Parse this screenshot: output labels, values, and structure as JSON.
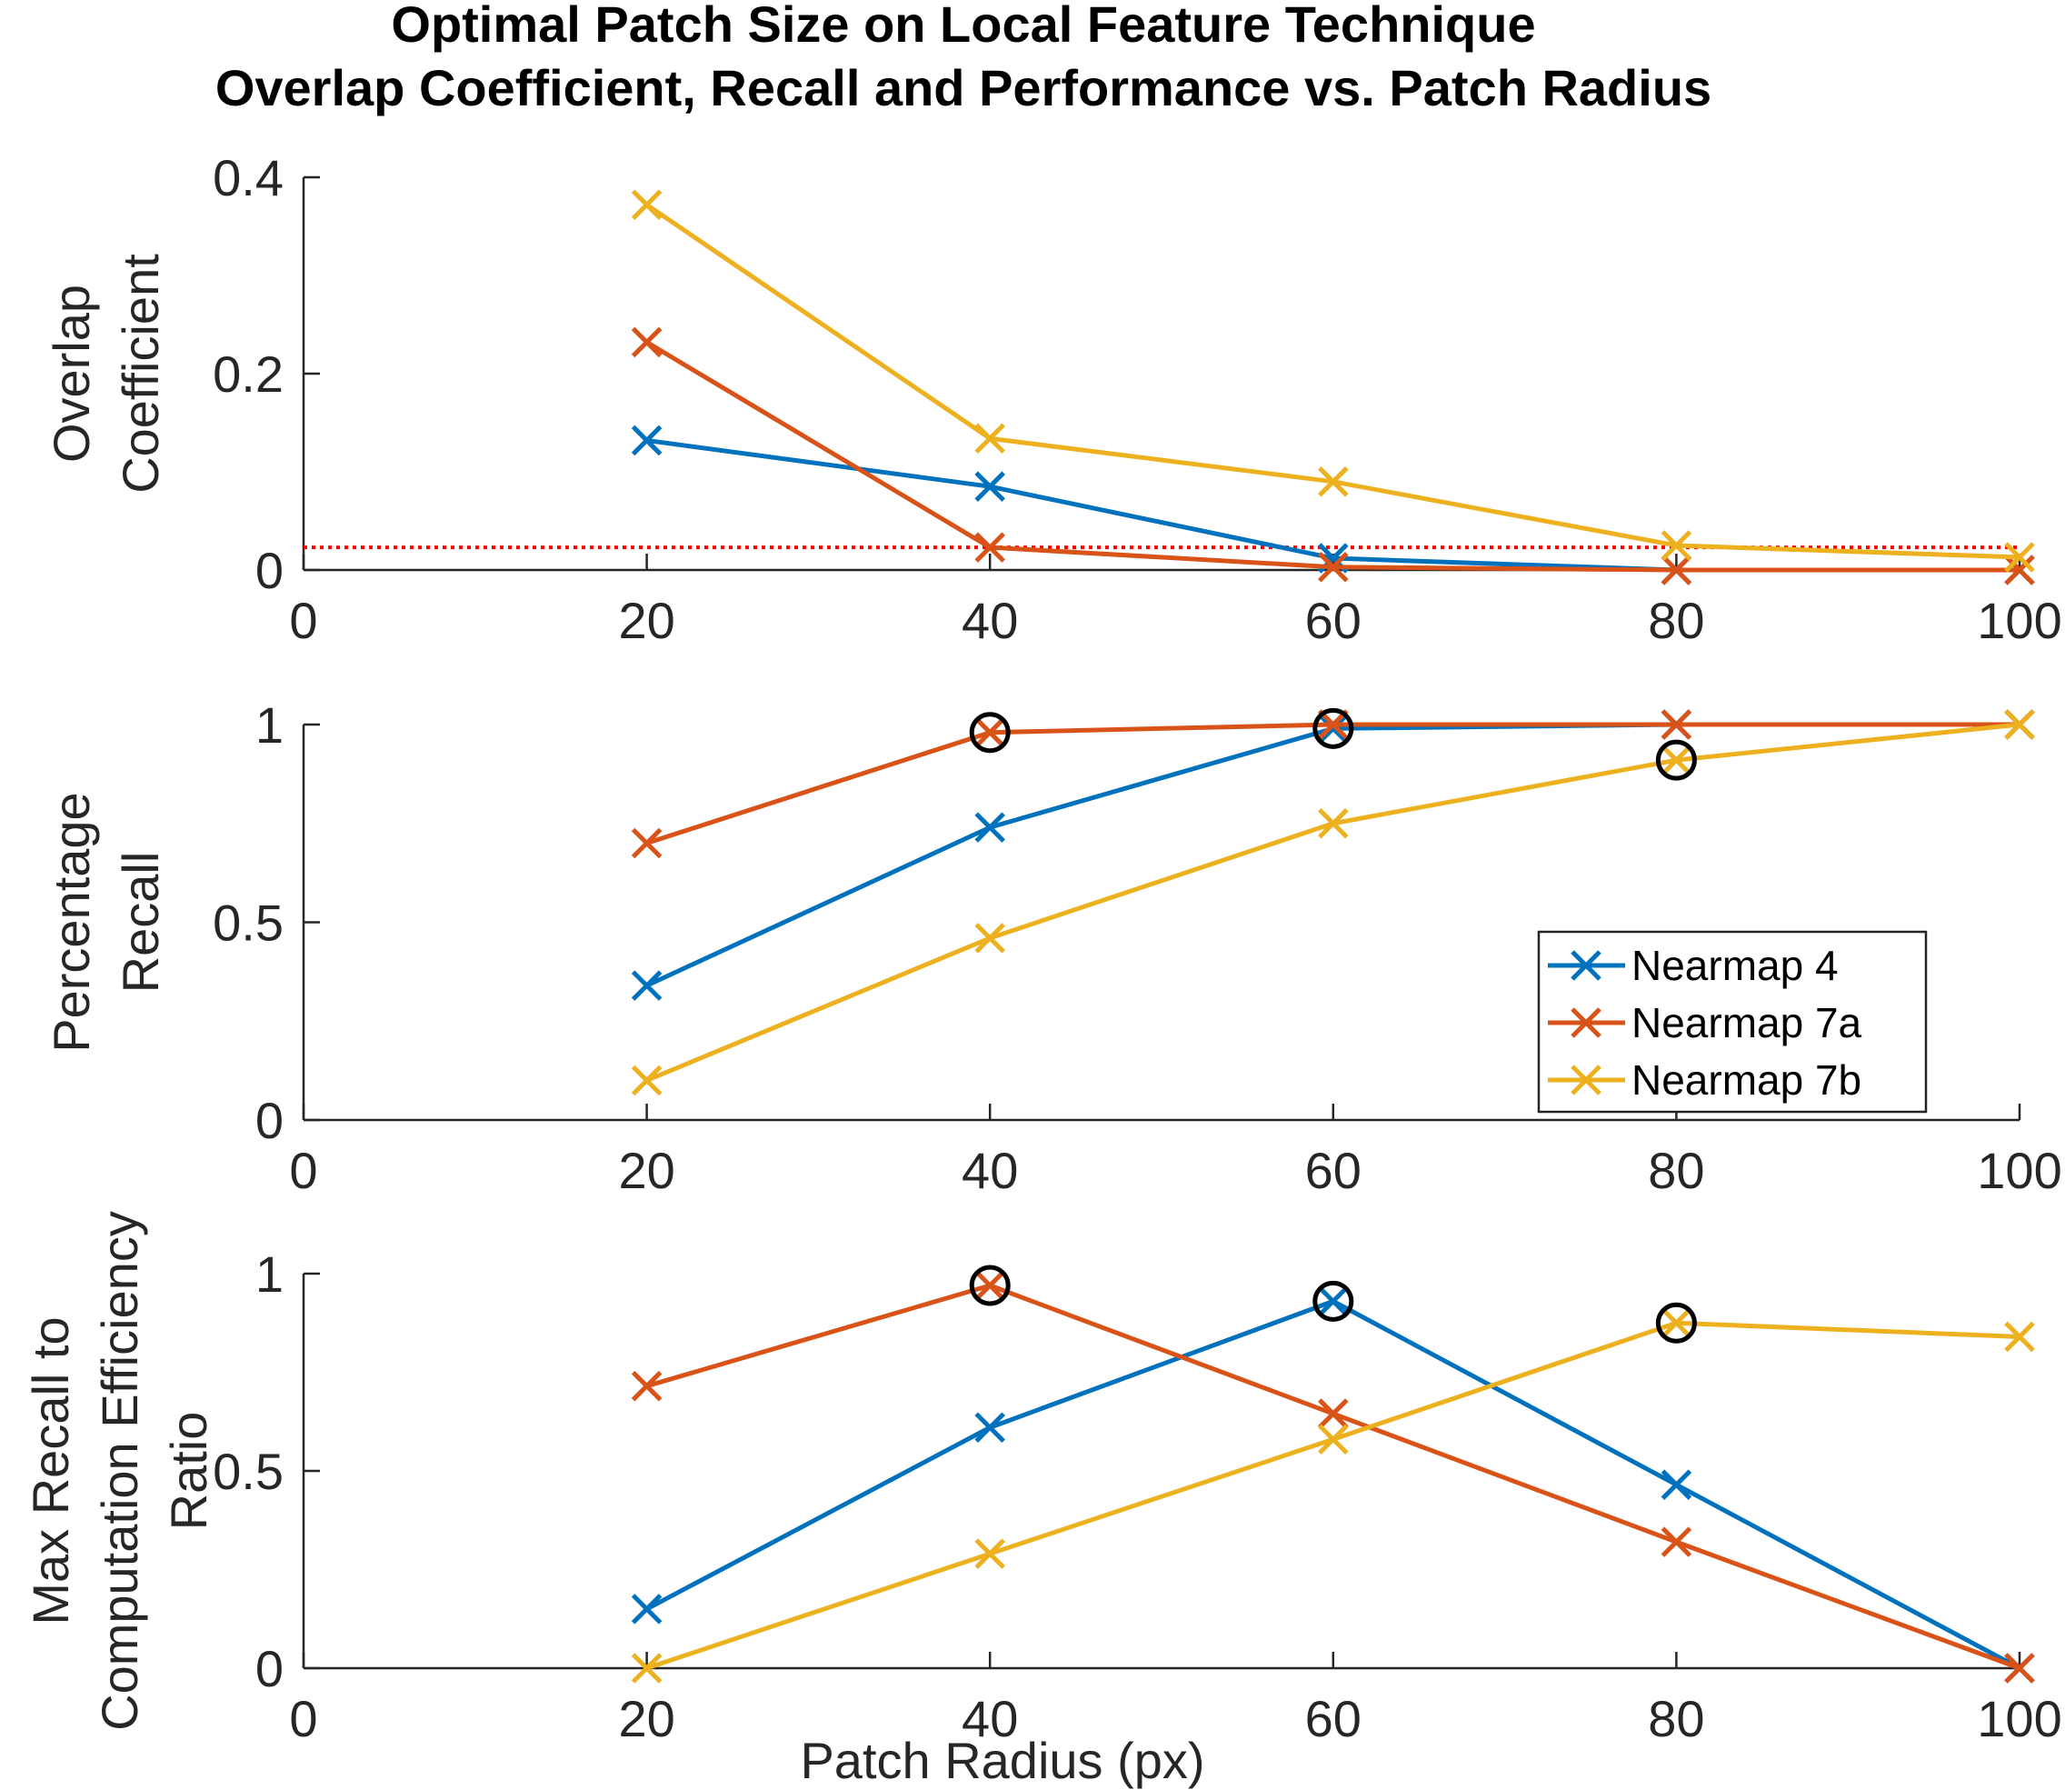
{
  "chart_data": {
    "type": "line",
    "title": [
      "Optimal Patch Size on Local Feature Technique",
      "Overlap Coefficient, Recall and Performance vs. Patch Radius"
    ],
    "xlabel": "Patch Radius (px)",
    "x": [
      20,
      40,
      60,
      80,
      100
    ],
    "xlim": [
      0,
      100
    ],
    "xticks": [
      0,
      20,
      40,
      60,
      80,
      100
    ],
    "colors": {
      "Nearmap 4": "#0072BD",
      "Nearmap 7a": "#D95319",
      "Nearmap 7b": "#EDB120",
      "threshold": "#FF0000",
      "highlight": "#000000"
    },
    "legend": {
      "entries": [
        "Nearmap 4",
        "Nearmap 7a",
        "Nearmap 7b"
      ],
      "location": "lower-right of middle panel"
    },
    "panels": [
      {
        "ylabel": [
          "Overlap",
          "Coefficient"
        ],
        "ylim": [
          0,
          0.4
        ],
        "yticks": [
          0,
          0.2,
          0.4
        ],
        "ytick_labels": [
          "0",
          "0.2",
          "0.4"
        ],
        "series": [
          {
            "name": "Nearmap 4",
            "values": [
              0.132,
              0.085,
              0.012,
              0.0,
              0.0
            ]
          },
          {
            "name": "Nearmap 7a",
            "values": [
              0.232,
              0.023,
              0.003,
              0.0,
              0.0
            ]
          },
          {
            "name": "Nearmap 7b",
            "values": [
              0.372,
              0.134,
              0.09,
              0.025,
              0.013
            ]
          }
        ],
        "reference_line": {
          "y": 0.023,
          "style": "dotted"
        }
      },
      {
        "ylabel": [
          "Percentage",
          "Recall"
        ],
        "ylim": [
          0,
          1
        ],
        "yticks": [
          0,
          0.5,
          1
        ],
        "ytick_labels": [
          "0",
          "0.5",
          "1"
        ],
        "series": [
          {
            "name": "Nearmap 4",
            "values": [
              0.34,
              0.74,
              0.99,
              1.0,
              1.0
            ]
          },
          {
            "name": "Nearmap 7a",
            "values": [
              0.7,
              0.98,
              1.0,
              1.0,
              1.0
            ]
          },
          {
            "name": "Nearmap 7b",
            "values": [
              0.1,
              0.46,
              0.75,
              0.91,
              1.0
            ]
          }
        ],
        "highlights": [
          {
            "series": "Nearmap 7a",
            "x": 40,
            "y": 0.98
          },
          {
            "series": "Nearmap 4",
            "x": 60,
            "y": 0.99
          },
          {
            "series": "Nearmap 7b",
            "x": 80,
            "y": 0.91
          }
        ]
      },
      {
        "ylabel": [
          "Max Recall to",
          "Computation Efficiency",
          "Ratio"
        ],
        "ylim": [
          0,
          1
        ],
        "yticks": [
          0,
          0.5,
          1
        ],
        "ytick_labels": [
          "0",
          "0.5",
          "1"
        ],
        "series": [
          {
            "name": "Nearmap 4",
            "values": [
              0.15,
              0.61,
              0.93,
              0.465,
              0.0
            ]
          },
          {
            "name": "Nearmap 7a",
            "values": [
              0.715,
              0.97,
              0.645,
              0.32,
              0.0
            ]
          },
          {
            "name": "Nearmap 7b",
            "values": [
              0.0,
              0.29,
              0.58,
              0.875,
              0.84
            ]
          }
        ],
        "highlights": [
          {
            "series": "Nearmap 7a",
            "x": 40,
            "y": 0.97
          },
          {
            "series": "Nearmap 4",
            "x": 60,
            "y": 0.93
          },
          {
            "series": "Nearmap 7b",
            "x": 80,
            "y": 0.875
          }
        ]
      }
    ]
  }
}
